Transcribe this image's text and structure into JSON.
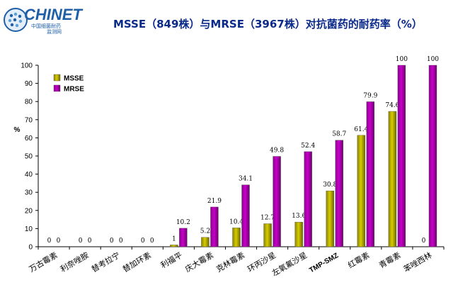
{
  "logo": {
    "name": "CHINET",
    "line1": "中国细菌耐药",
    "line2": "监测网"
  },
  "colors": {
    "MSSE": "#d7cc00",
    "MRSE": "#c800c8",
    "title": "#0a2a8a",
    "logo": "#1f5fa8"
  },
  "chart_data": {
    "type": "bar",
    "title": "MSSE（849株）与MRSE（3967株）对抗菌药的耐药率（%）",
    "ylabel": "%",
    "xlabel": "",
    "ylim": [
      0,
      100
    ],
    "yticks": [
      "0",
      "10",
      "20",
      "30",
      "40",
      "50",
      "60",
      "70",
      "80",
      "90",
      "100"
    ],
    "grid": false,
    "legend_position": "top-left",
    "categories": [
      "万古霉素",
      "利奈唑胺",
      "替考拉宁",
      "替加环素",
      "利福平",
      "庆大霉素",
      "克林霉素",
      "环丙沙星",
      "左氧氟沙星",
      "TMP-SMZ",
      "红霉素",
      "青霉素",
      "苯唑西林"
    ],
    "series": [
      {
        "name": "MSSE",
        "values": [
          0,
          0,
          0,
          0,
          1,
          5.2,
          10.4,
          12.7,
          13.6,
          30.8,
          61.4,
          74.6,
          0
        ],
        "labels": [
          "0",
          "0",
          "0",
          "0",
          "1",
          "5.2",
          "10.4",
          "12.7",
          "13.6",
          "30.8",
          "61.4",
          "74.6",
          "0"
        ]
      },
      {
        "name": "MRSE",
        "values": [
          0,
          0,
          0,
          0,
          10.2,
          21.9,
          34.1,
          49.8,
          52.4,
          58.7,
          79.9,
          100,
          100
        ],
        "labels": [
          "0",
          "0",
          "0",
          "0",
          "10.2",
          "21.9",
          "34.1",
          "49.8",
          "52.4",
          "58.7",
          "79.9",
          "100",
          "100"
        ]
      }
    ]
  }
}
